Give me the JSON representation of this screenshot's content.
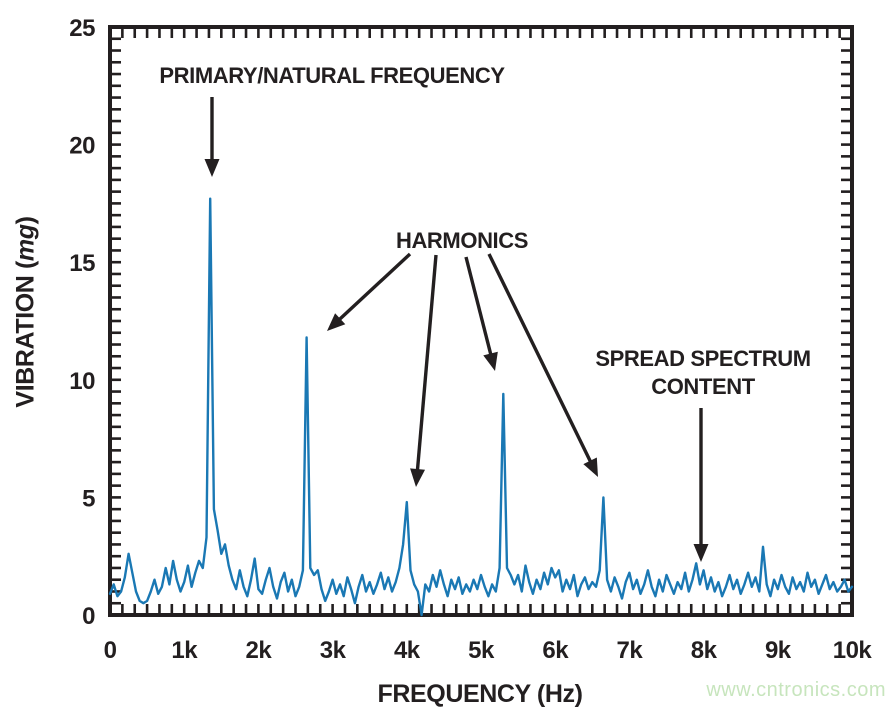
{
  "colors": {
    "ink": "#231f20",
    "trace": "#1a78b4",
    "watermark": "#c7e5bd",
    "background": "#ffffff"
  },
  "watermark": {
    "text": "www.cntronics.com"
  },
  "axes": {
    "x": {
      "title": "FREQUENCY (Hz)",
      "ticks": [
        "0",
        "1k",
        "2k",
        "3k",
        "4k",
        "5k",
        "6k",
        "7k",
        "8k",
        "9k",
        "10k"
      ],
      "min": 0,
      "max": 10000
    },
    "y": {
      "title_prefix": "VIBRATION (",
      "title_em": "mg",
      "title_suffix": ")",
      "ticks": [
        "0",
        "5",
        "10",
        "15",
        "20",
        "25"
      ],
      "min": 0,
      "max": 25
    }
  },
  "annotations": {
    "primary": {
      "text": "PRIMARY/NATURAL FREQUENCY",
      "arrows": [
        [
          212,
          97,
          212,
          177
        ]
      ]
    },
    "harmonics": {
      "text": "HARMONICS",
      "arrows": [
        [
          410,
          254,
          327,
          331
        ],
        [
          436,
          255,
          416,
          487
        ],
        [
          466,
          257,
          495,
          371
        ],
        [
          489,
          254,
          598,
          477
        ]
      ]
    },
    "spread": {
      "line1": "SPREAD SPECTRUM",
      "line2": "CONTENT",
      "arrows": [
        [
          701,
          408,
          701,
          562
        ]
      ]
    }
  },
  "chart_data": {
    "type": "line",
    "title": "",
    "xlabel": "FREQUENCY (Hz)",
    "ylabel": "VIBRATION (mg)",
    "xlim": [
      0,
      10000
    ],
    "ylim": [
      0,
      25
    ],
    "grid": false,
    "legend": "none",
    "x_start": 0,
    "x_step": 50,
    "peaks": [
      {
        "label": "primary/natural frequency",
        "hz": 1350,
        "mg": 17.7
      },
      {
        "label": "harmonic",
        "hz": 2650,
        "mg": 11.8
      },
      {
        "label": "harmonic",
        "hz": 4000,
        "mg": 4.8
      },
      {
        "label": "harmonic",
        "hz": 5300,
        "mg": 9.4
      },
      {
        "label": "harmonic",
        "hz": 6650,
        "mg": 5.0
      },
      {
        "label": "spread spectrum content",
        "hz": 8000,
        "mg": 1.9
      }
    ],
    "values": [
      0.9,
      1.3,
      0.8,
      1.0,
      1.6,
      2.6,
      1.8,
      1.0,
      0.6,
      0.5,
      0.6,
      1.0,
      1.5,
      0.9,
      1.2,
      2.0,
      1.3,
      2.3,
      1.5,
      1.0,
      1.4,
      2.1,
      1.2,
      1.8,
      2.3,
      2.0,
      3.3,
      17.7,
      4.5,
      3.6,
      2.6,
      3.0,
      2.1,
      1.5,
      1.1,
      1.9,
      1.2,
      0.8,
      1.5,
      2.4,
      1.1,
      0.9,
      1.5,
      2.0,
      1.2,
      0.7,
      1.4,
      1.8,
      1.0,
      1.5,
      0.8,
      1.2,
      1.9,
      11.8,
      2.0,
      1.7,
      1.9,
      1.1,
      0.6,
      1.0,
      1.5,
      0.9,
      1.3,
      0.8,
      1.6,
      1.1,
      0.5,
      1.2,
      1.7,
      1.0,
      1.4,
      0.9,
      1.3,
      1.8,
      1.1,
      1.6,
      1.0,
      1.4,
      2.0,
      3.0,
      4.8,
      1.9,
      1.3,
      1.0,
      0.0,
      1.3,
      1.0,
      1.7,
      1.2,
      1.9,
      1.3,
      0.8,
      1.5,
      1.1,
      1.6,
      0.9,
      1.3,
      1.0,
      1.5,
      1.1,
      1.7,
      1.2,
      0.8,
      1.3,
      1.0,
      2.0,
      9.4,
      2.0,
      1.7,
      1.3,
      1.7,
      1.0,
      2.1,
      1.4,
      0.9,
      1.5,
      1.1,
      1.8,
      1.3,
      2.0,
      1.6,
      1.9,
      1.0,
      1.5,
      1.1,
      1.7,
      0.8,
      1.3,
      1.6,
      1.1,
      1.4,
      1.2,
      1.9,
      5.0,
      1.5,
      1.0,
      1.6,
      1.2,
      0.7,
      1.4,
      1.8,
      1.1,
      1.5,
      0.9,
      1.3,
      1.9,
      1.2,
      0.8,
      1.5,
      1.0,
      1.7,
      1.3,
      0.9,
      1.4,
      1.1,
      1.8,
      1.0,
      1.5,
      2.2,
      1.3,
      1.9,
      1.1,
      1.6,
      1.0,
      1.4,
      0.8,
      1.2,
      1.7,
      1.1,
      1.5,
      0.9,
      1.3,
      1.8,
      1.2,
      1.6,
      1.0,
      2.9,
      1.3,
      0.8,
      1.5,
      1.1,
      1.7,
      1.2,
      0.9,
      1.6,
      1.1,
      1.4,
      1.0,
      1.8,
      1.2,
      1.5,
      0.9,
      1.3,
      1.7,
      1.1,
      1.4,
      1.0,
      1.2,
      1.5,
      1.0,
      1.2
    ]
  }
}
